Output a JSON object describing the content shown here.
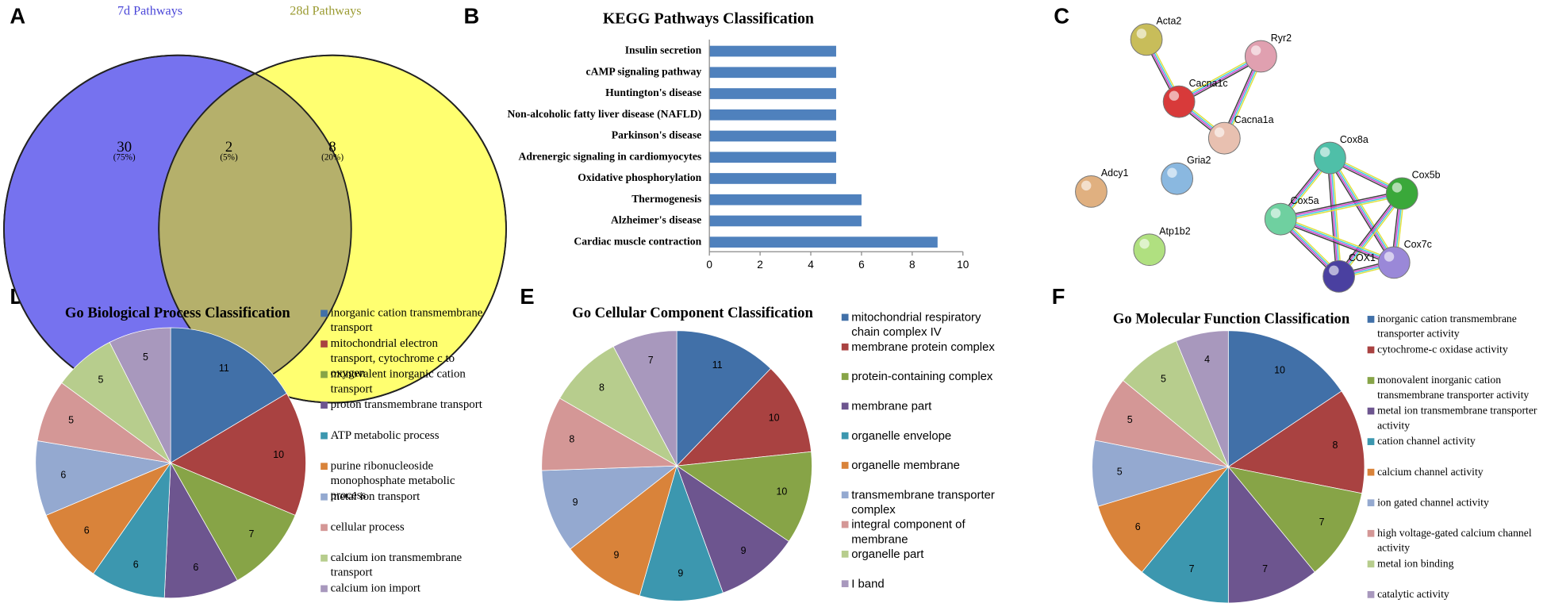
{
  "panels": [
    "A",
    "B",
    "C",
    "D",
    "E",
    "F"
  ],
  "network": {
    "labels": [
      "Acta2",
      "Ryr2",
      "Cacna1c",
      "Cacna1a",
      "Cox8a",
      "Gria2",
      "Adcy1",
      "Cox5b",
      "Cox5a",
      "Atp1b2",
      "Cox7c",
      "COX1"
    ]
  },
  "chart_data": [
    {
      "type": "venn",
      "sets": [
        {
          "name": "7d Pathways",
          "color": "#7672ef"
        },
        {
          "name": "28d Pathways",
          "color": "#ffff70"
        }
      ],
      "overlap_color": "#b5b06b",
      "values": [
        30,
        2,
        8
      ],
      "percents": [
        75,
        5,
        20
      ],
      "percent_labels": [
        "(75%)",
        "(5%)",
        "(20%)"
      ]
    },
    {
      "type": "bar",
      "orientation": "horizontal",
      "title": "KEGG Pathways Classification",
      "categories": [
        "Insulin secretion",
        "cAMP signaling pathway",
        "Huntington's disease",
        "Non-alcoholic fatty liver disease (NAFLD)",
        "Parkinson's disease",
        "Adrenergic signaling in cardiomyocytes",
        "Oxidative phosphorylation",
        "Thermogenesis",
        "Alzheimer's disease",
        "Cardiac muscle contraction"
      ],
      "values": [
        5,
        5,
        5,
        5,
        5,
        5,
        5,
        6,
        6,
        9
      ],
      "color": "#4f81bd",
      "xlim": [
        0,
        10
      ],
      "xticks": [
        0,
        2,
        4,
        6,
        8,
        10
      ]
    },
    {
      "type": "pie",
      "title": "Go Biological Process Classification",
      "categories": [
        "inorganic cation transmembrane transport",
        "mitochondrial electron transport, cytochrome c to oxygen",
        "monovalent inorganic cation transport",
        "proton transmembrane transport",
        "ATP metabolic process",
        "purine ribonucleoside monophosphate metabolic process",
        "metal ion transport",
        "cellular process",
        "calcium ion transmembrane transport",
        "calcium ion import"
      ],
      "values": [
        11,
        10,
        7,
        6,
        6,
        6,
        6,
        5,
        5,
        5
      ],
      "colors": [
        "#4170a8",
        "#a94241",
        "#87a447",
        "#6d558f",
        "#3c97af",
        "#d9833a",
        "#94a9d0",
        "#d49796",
        "#b7cd8d",
        "#a898bd"
      ]
    },
    {
      "type": "pie",
      "title": "Go Cellular Component Classification",
      "categories": [
        "mitochondrial respiratory chain complex IV",
        "membrane protein complex",
        "protein-containing complex",
        "membrane part",
        "organelle envelope",
        "organelle membrane",
        "transmembrane transporter complex",
        "integral component of membrane",
        "organelle part",
        "I band"
      ],
      "values": [
        11,
        10,
        10,
        9,
        9,
        9,
        9,
        8,
        8,
        7
      ],
      "colors": [
        "#4170a8",
        "#a94241",
        "#87a447",
        "#6d558f",
        "#3c97af",
        "#d9833a",
        "#94a9d0",
        "#d49796",
        "#b7cd8d",
        "#a898bd"
      ]
    },
    {
      "type": "pie",
      "title": "Go Molecular Function Classification",
      "categories": [
        "inorganic cation transmembrane transporter activity",
        "cytochrome-c oxidase activity",
        "monovalent inorganic cation transmembrane transporter activity",
        "metal ion transmembrane transporter activity",
        "cation channel activity",
        "calcium channel activity",
        "ion gated channel activity",
        "high voltage-gated calcium channel activity",
        "metal ion binding",
        "catalytic activity"
      ],
      "values": [
        10,
        8,
        7,
        7,
        7,
        6,
        5,
        5,
        5,
        4
      ],
      "colors": [
        "#4170a8",
        "#a94241",
        "#87a447",
        "#6d558f",
        "#3c97af",
        "#d9833a",
        "#94a9d0",
        "#d49796",
        "#b7cd8d",
        "#a898bd"
      ]
    }
  ]
}
